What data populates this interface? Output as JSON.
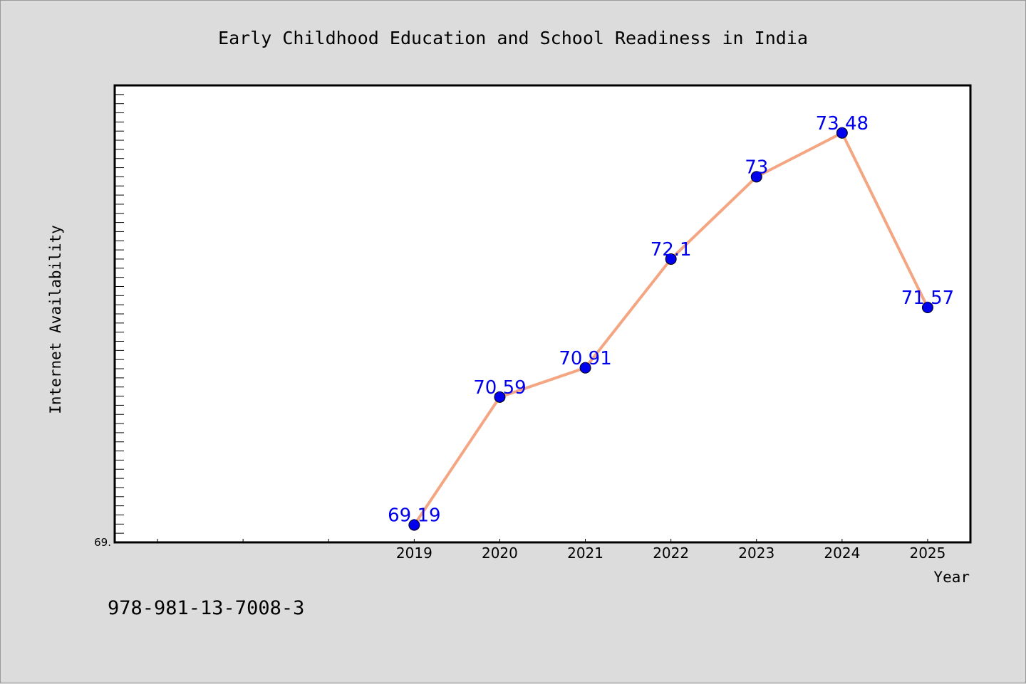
{
  "chart_data": {
    "type": "line",
    "title": "Early Childhood Education and School Readiness in India",
    "xlabel": "Year",
    "ylabel": "Internet Availability",
    "x": [
      "2019",
      "2020",
      "2021",
      "2022",
      "2023",
      "2024",
      "2025"
    ],
    "x_range": [
      2015.5,
      2025.5
    ],
    "series": [
      {
        "values": [
          69.19,
          70.59,
          70.91,
          72.1,
          73.0,
          73.48,
          71.57
        ]
      }
    ],
    "data_labels": [
      "69.19",
      "70.59",
      "70.91",
      "72.1",
      "73",
      "73.48",
      "71.57"
    ],
    "ylim": [
      69.0,
      74.0
    ],
    "y_tick_labels": [
      "69."
    ],
    "grid": false,
    "legend": "none",
    "colors": {
      "line": "#f4a582",
      "marker": "#0000ee",
      "label": "#0000ee",
      "background": "#dcdcdc",
      "plot_area": "#ffffff"
    }
  },
  "footnote": "978-981-13-7008-3"
}
